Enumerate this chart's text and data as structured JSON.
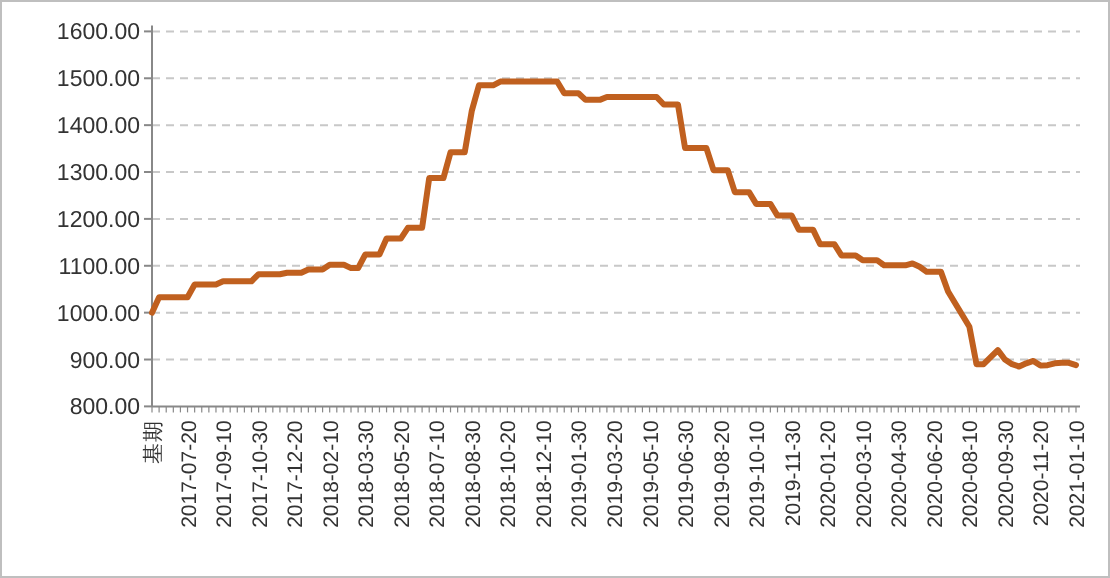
{
  "chart_data": {
    "type": "line",
    "color": "#c0601f",
    "grid": "y",
    "ylim": [
      800,
      1600
    ],
    "yticks": [
      {
        "value": 800,
        "label": "800.00"
      },
      {
        "value": 900,
        "label": "900.00"
      },
      {
        "value": 1000,
        "label": "1000.00"
      },
      {
        "value": 1100,
        "label": "1100.00"
      },
      {
        "value": 1200,
        "label": "1200.00"
      },
      {
        "value": 1300,
        "label": "1300.00"
      },
      {
        "value": 1400,
        "label": "1400.00"
      },
      {
        "value": 1500,
        "label": "1500.00"
      },
      {
        "value": 1600,
        "label": "1600.00"
      }
    ],
    "categories": [
      "基期",
      null,
      null,
      null,
      null,
      "2017-07-20",
      null,
      null,
      null,
      null,
      "2017-09-10",
      null,
      null,
      null,
      null,
      "2017-10-30",
      null,
      null,
      null,
      null,
      "2017-12-20",
      null,
      null,
      null,
      null,
      "2018-02-10",
      null,
      null,
      null,
      null,
      "2018-03-30",
      null,
      null,
      null,
      null,
      "2018-05-20",
      null,
      null,
      null,
      null,
      "2018-07-10",
      null,
      null,
      null,
      null,
      "2018-08-30",
      null,
      null,
      null,
      null,
      "2018-10-20",
      null,
      null,
      null,
      null,
      "2018-12-10",
      null,
      null,
      null,
      null,
      "2019-01-30",
      null,
      null,
      null,
      null,
      "2019-03-20",
      null,
      null,
      null,
      null,
      "2019-05-10",
      null,
      null,
      null,
      null,
      "2019-06-30",
      null,
      null,
      null,
      null,
      "2019-08-20",
      null,
      null,
      null,
      null,
      "2019-10-10",
      null,
      null,
      null,
      null,
      "2019-11-30",
      null,
      null,
      null,
      null,
      "2020-01-20",
      null,
      null,
      null,
      null,
      "2020-03-10",
      null,
      null,
      null,
      null,
      "2020-04-30",
      null,
      null,
      null,
      null,
      "2020-06-20",
      null,
      null,
      null,
      null,
      "2020-08-10",
      null,
      null,
      null,
      null,
      "2020-09-30",
      null,
      null,
      null,
      null,
      "2020-11-20",
      null,
      null,
      null,
      null,
      "2021-01-10"
    ],
    "values": [
      1000,
      1033,
      1033,
      1033,
      1033,
      1033,
      1060,
      1060,
      1060,
      1060,
      1067,
      1067,
      1067,
      1067,
      1067,
      1082,
      1082,
      1082,
      1082,
      1085,
      1085,
      1085,
      1092,
      1092,
      1092,
      1102,
      1102,
      1102,
      1095,
      1095,
      1124,
      1124,
      1124,
      1158,
      1158,
      1158,
      1181,
      1181,
      1181,
      1287,
      1287,
      1287,
      1342,
      1342,
      1342,
      1431,
      1485,
      1485,
      1485,
      1493,
      1493,
      1493,
      1493,
      1493,
      1493,
      1493,
      1493,
      1493,
      1468,
      1468,
      1468,
      1454,
      1454,
      1454,
      1460,
      1460,
      1460,
      1460,
      1460,
      1460,
      1460,
      1460,
      1444,
      1444,
      1444,
      1351,
      1351,
      1351,
      1351,
      1304,
      1304,
      1304,
      1257,
      1257,
      1257,
      1232,
      1232,
      1232,
      1207,
      1207,
      1207,
      1177,
      1177,
      1177,
      1146,
      1146,
      1146,
      1122,
      1122,
      1122,
      1112,
      1112,
      1112,
      1101,
      1101,
      1101,
      1101,
      1105,
      1098,
      1087,
      1087,
      1087,
      1045,
      1020,
      995,
      970,
      890,
      890,
      905,
      920,
      900,
      890,
      885,
      892,
      897,
      887,
      888,
      892,
      893,
      893,
      888
    ]
  }
}
